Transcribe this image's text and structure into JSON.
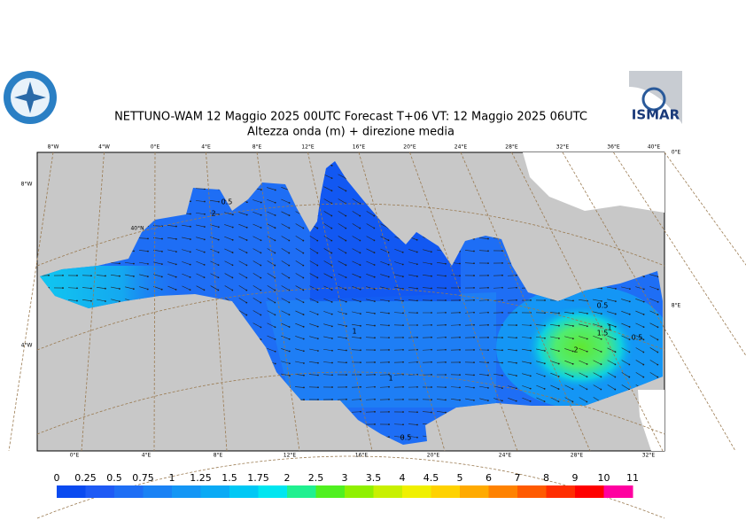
{
  "header": {
    "title": "NETTUNO-WAM  12   Maggio  2025 00UTC Forecast T+06 VT: 12   Maggio  2025 06UTC",
    "subtitle": "Altezza onda (m) + direzione media",
    "logo_right": "ISMAR"
  },
  "map": {
    "top_labels": [
      "8°W",
      "4°W",
      "0°E",
      "4°E",
      "8°E",
      "12°E",
      "16°E",
      "20°E",
      "24°E",
      "28°E",
      "32°E",
      "36°E",
      "40°E"
    ],
    "bottom_labels": [
      "0°E",
      "4°E",
      "8°E",
      "12°E",
      "16°E",
      "20°E",
      "24°E",
      "28°E",
      "32°E"
    ],
    "left_labels": [
      "8°W",
      "40°N",
      "4°W"
    ],
    "right_labels": [
      "0°E",
      "8°E"
    ],
    "contour_labels": [
      "0.5",
      "2",
      "1",
      "1",
      "0.5",
      "0.5",
      "1",
      "1.5",
      "0.5",
      "2"
    ]
  },
  "colorbar": {
    "ticks": [
      0,
      0.25,
      0.5,
      0.75,
      1,
      1.25,
      1.5,
      1.75,
      2,
      2.5,
      3,
      3.5,
      4,
      4.5,
      5,
      6,
      7,
      8,
      9,
      10,
      11
    ],
    "colors": [
      "#0a4af0",
      "#1e5af5",
      "#1e6ef5",
      "#1a82f5",
      "#1496f5",
      "#0aaaf5",
      "#00c8f5",
      "#00e6f0",
      "#20f090",
      "#50f020",
      "#90f000",
      "#c8f000",
      "#f0f000",
      "#ffd200",
      "#ffaa00",
      "#ff8200",
      "#ff5a00",
      "#ff2d00",
      "#ff0000",
      "#ff00a0"
    ]
  }
}
